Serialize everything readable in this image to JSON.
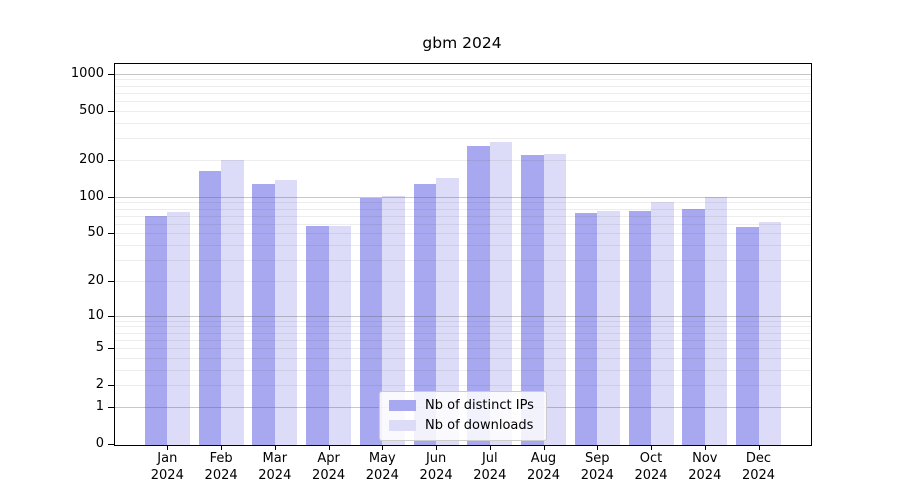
{
  "title": "gbm 2024",
  "colors": {
    "ips_bar": "#a8a8f0",
    "downloads_bar": "#dcdcf8",
    "axis": "#000000",
    "grid_major": "rgba(80,80,80,0.32)",
    "grid_minor": "rgba(80,80,80,0.10)",
    "legend_border": "#cccccc",
    "background": "#ffffff"
  },
  "chart_data": {
    "type": "bar",
    "title": "gbm 2024",
    "scale": "log10(1+x)",
    "grid": "on",
    "legend_position": "lower center",
    "categories": [
      "Jan",
      "Feb",
      "Mar",
      "Apr",
      "May",
      "Jun",
      "Jul",
      "Aug",
      "Sep",
      "Oct",
      "Nov",
      "Dec"
    ],
    "category_year": "2024",
    "series": [
      {
        "name": "Nb of distinct IPs",
        "values": [
          70,
          162,
          128,
          57,
          98,
          127,
          257,
          217,
          73,
          77,
          79,
          56
        ]
      },
      {
        "name": "Nb of downloads",
        "values": [
          75,
          200,
          137,
          58,
          101,
          143,
          277,
          224,
          77,
          90,
          99,
          62
        ]
      }
    ],
    "yticks": [
      0,
      1,
      2,
      5,
      10,
      20,
      50,
      100,
      200,
      500,
      1000
    ],
    "grid_major_values": [
      1,
      10,
      100,
      1000
    ],
    "grid_minor_values": [
      2,
      3,
      4,
      5,
      6,
      7,
      8,
      9,
      20,
      30,
      40,
      50,
      60,
      70,
      80,
      90,
      200,
      300,
      400,
      500,
      600,
      700,
      800,
      900
    ],
    "ylim": [
      0,
      1230
    ],
    "xlabel": "",
    "ylabel": ""
  }
}
